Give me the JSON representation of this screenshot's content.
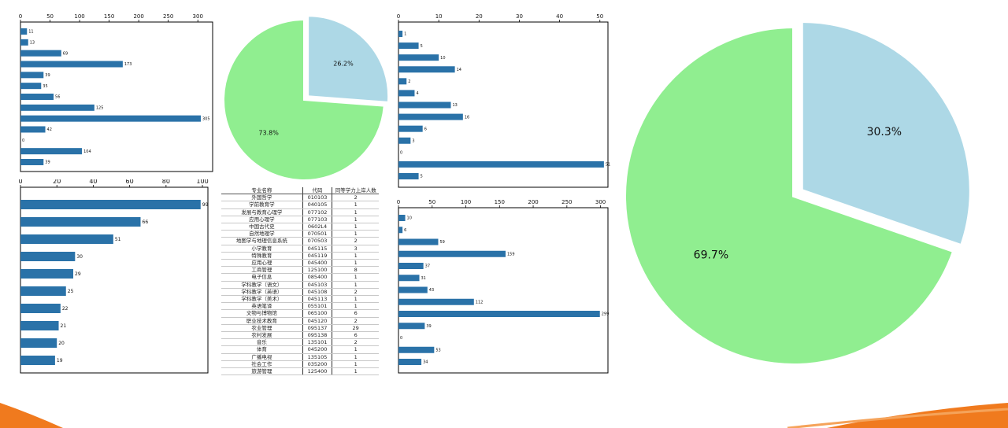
{
  "chart_data": [
    {
      "id": "bar1",
      "type": "bar",
      "orientation": "horizontal",
      "values": [
        11,
        13,
        69,
        173,
        39,
        35,
        56,
        125,
        305,
        42,
        0,
        104,
        39
      ],
      "xticks": [
        "0",
        "50",
        "100",
        "150",
        "200",
        "250",
        "300"
      ],
      "xlim": [
        0,
        325
      ],
      "axis_position": "top"
    },
    {
      "id": "pie1",
      "type": "pie",
      "slices": [
        {
          "label": "26.2%",
          "value": 26.2,
          "color": "#add8e6",
          "exploded": true
        },
        {
          "label": "73.8%",
          "value": 73.8,
          "color": "#90ee90",
          "exploded": false
        }
      ]
    },
    {
      "id": "bar2",
      "type": "bar",
      "orientation": "horizontal",
      "values": [
        1,
        5,
        10,
        14,
        2,
        4,
        13,
        16,
        6,
        3,
        0,
        51,
        5
      ],
      "xticks": [
        "0",
        "10",
        "20",
        "30",
        "40",
        "50"
      ],
      "xlim": [
        0,
        52
      ],
      "axis_position": "top"
    },
    {
      "id": "pie2",
      "type": "pie",
      "slices": [
        {
          "label": "30.3%",
          "value": 30.3,
          "color": "#add8e6",
          "exploded": true
        },
        {
          "label": "69.7%",
          "value": 69.7,
          "color": "#90ee90",
          "exploded": false
        }
      ]
    },
    {
      "id": "bar3",
      "type": "bar",
      "orientation": "horizontal",
      "values": [
        99,
        66,
        51,
        30,
        29,
        25,
        22,
        21,
        20,
        19
      ],
      "xticks": [
        "0",
        "20",
        "40",
        "60",
        "80",
        "100"
      ],
      "xlim": [
        0,
        103
      ],
      "axis_position": "top"
    },
    {
      "id": "bar4",
      "type": "bar",
      "orientation": "horizontal",
      "values": [
        10,
        6,
        59,
        159,
        37,
        31,
        43,
        112,
        299,
        39,
        0,
        53,
        34
      ],
      "xticks": [
        "0",
        "50",
        "100",
        "150",
        "200",
        "250",
        "300"
      ],
      "xlim": [
        0,
        311
      ],
      "axis_position": "top"
    },
    {
      "id": "table1",
      "type": "table",
      "columns": [
        "专业名称",
        "代码",
        "同等学力上岸人数"
      ],
      "rows": [
        [
          "外国哲学",
          "010103",
          "2"
        ],
        [
          "学前教育学",
          "040105",
          "1"
        ],
        [
          "发展与教育心理学",
          "077102",
          "1"
        ],
        [
          "应用心理学",
          "077103",
          "1"
        ],
        [
          "中国古代史",
          "0602L4",
          "1"
        ],
        [
          "自然地理学",
          "070501",
          "1"
        ],
        [
          "地图学与地理信息系统",
          "070503",
          "2"
        ],
        [
          "小学教育",
          "045115",
          "3"
        ],
        [
          "特殊教育",
          "045119",
          "1"
        ],
        [
          "应用心理",
          "045400",
          "1"
        ],
        [
          "工商管理",
          "125100",
          "8"
        ],
        [
          "电子信息",
          "085400",
          "1"
        ],
        [
          "学科教学（语文）",
          "045103",
          "1"
        ],
        [
          "学科教学（英语）",
          "045108",
          "2"
        ],
        [
          "学科教学（美术）",
          "045113",
          "1"
        ],
        [
          "英语笔译",
          "055101",
          "1"
        ],
        [
          "文物与博物馆",
          "065100",
          "6"
        ],
        [
          "职业技术教育",
          "045120",
          "2"
        ],
        [
          "农业管理",
          "095137",
          "29"
        ],
        [
          "农村发展",
          "095138",
          "6"
        ],
        [
          "音乐",
          "135101",
          "2"
        ],
        [
          "体育",
          "045200",
          "1"
        ],
        [
          "广播电视",
          "135105",
          "1"
        ],
        [
          "社会工作",
          "035200",
          "1"
        ],
        [
          "旅游管理",
          "125400",
          "1"
        ]
      ]
    }
  ],
  "colors": {
    "bar": "#2a72a8",
    "pie_light_blue": "#add8e6",
    "pie_green": "#90ee90",
    "accent_orange": "#f07a1e"
  }
}
